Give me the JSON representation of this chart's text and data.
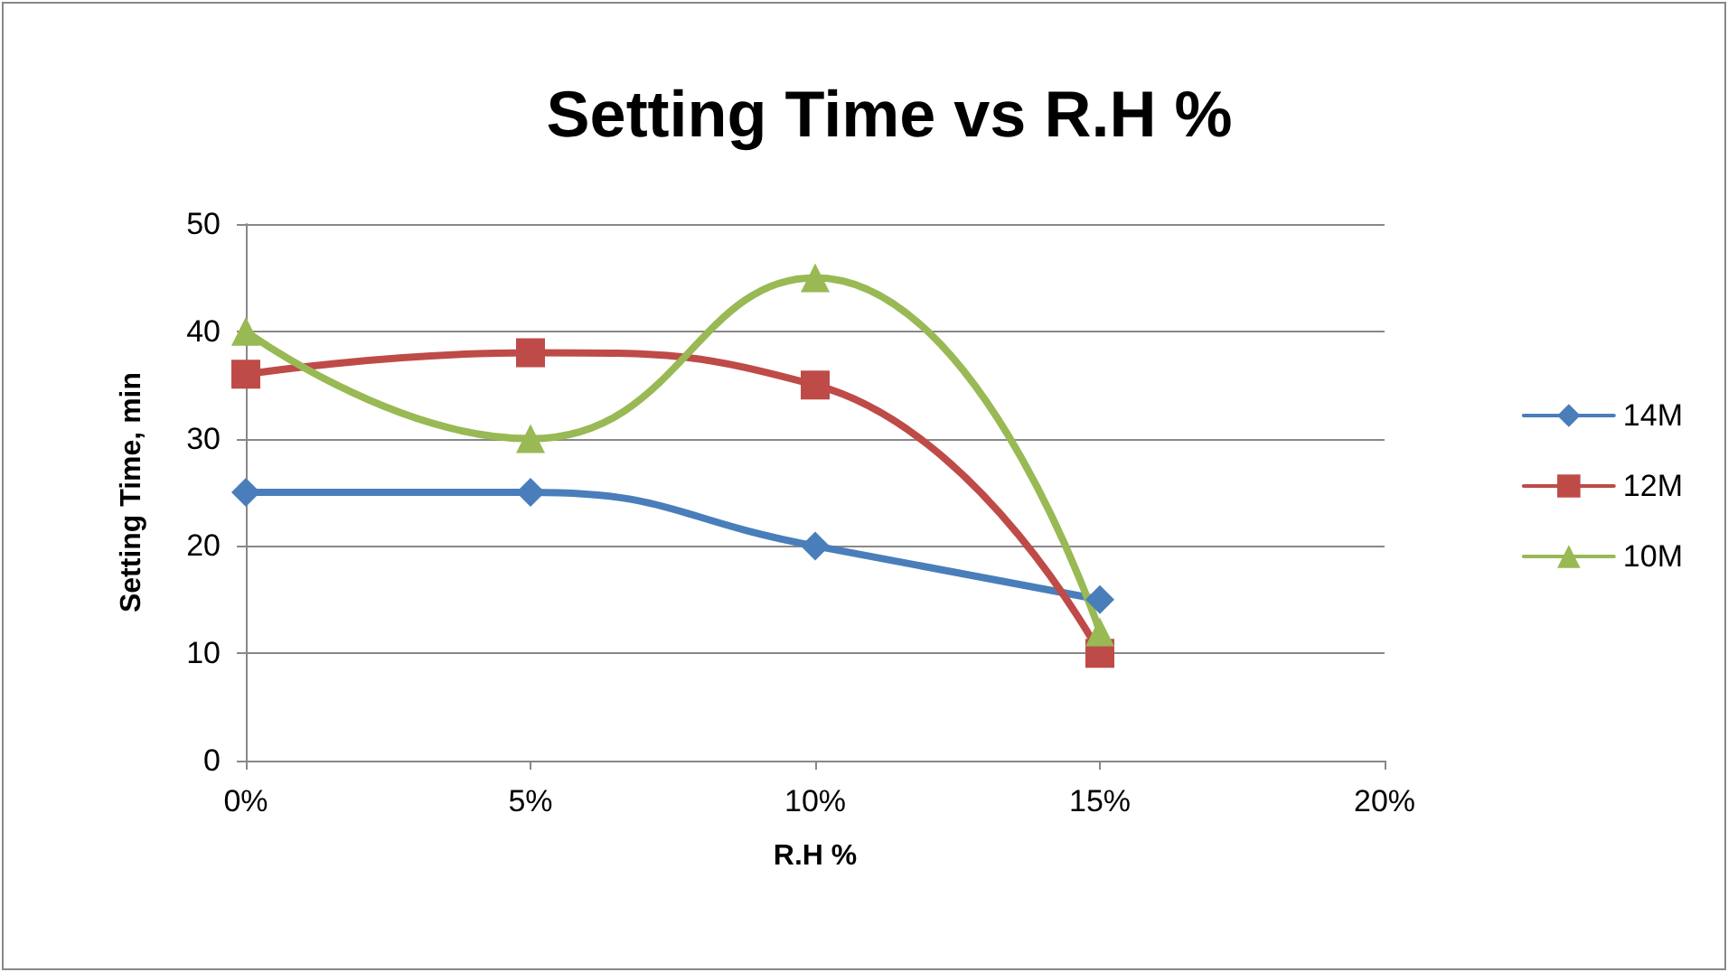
{
  "chart_data": {
    "type": "line",
    "title": "Setting Time vs R.H %",
    "xlabel": "R.H %",
    "ylabel": "Setting Time, min",
    "x": [
      0,
      0.05,
      0.1,
      0.15
    ],
    "series": [
      {
        "name": "14M",
        "color": "#4a7ebb",
        "marker": "diamond",
        "values": [
          25,
          25,
          20,
          15
        ]
      },
      {
        "name": "12M",
        "color": "#be4b48",
        "marker": "square",
        "values": [
          36,
          38,
          35,
          10
        ]
      },
      {
        "name": "10M",
        "color": "#98b954",
        "marker": "triangle",
        "values": [
          40,
          30,
          45,
          12
        ]
      }
    ],
    "xlim": [
      0,
      0.2
    ],
    "xticks": [
      {
        "value": 0,
        "label": "0%"
      },
      {
        "value": 0.05,
        "label": "5%"
      },
      {
        "value": 0.1,
        "label": "10%"
      },
      {
        "value": 0.15,
        "label": "15%"
      },
      {
        "value": 0.2,
        "label": "20%"
      }
    ],
    "ylim": [
      0,
      50
    ],
    "yticks": [
      0,
      10,
      20,
      30,
      40,
      50
    ],
    "grid": "y",
    "legend": "right",
    "line_style": "solid"
  }
}
